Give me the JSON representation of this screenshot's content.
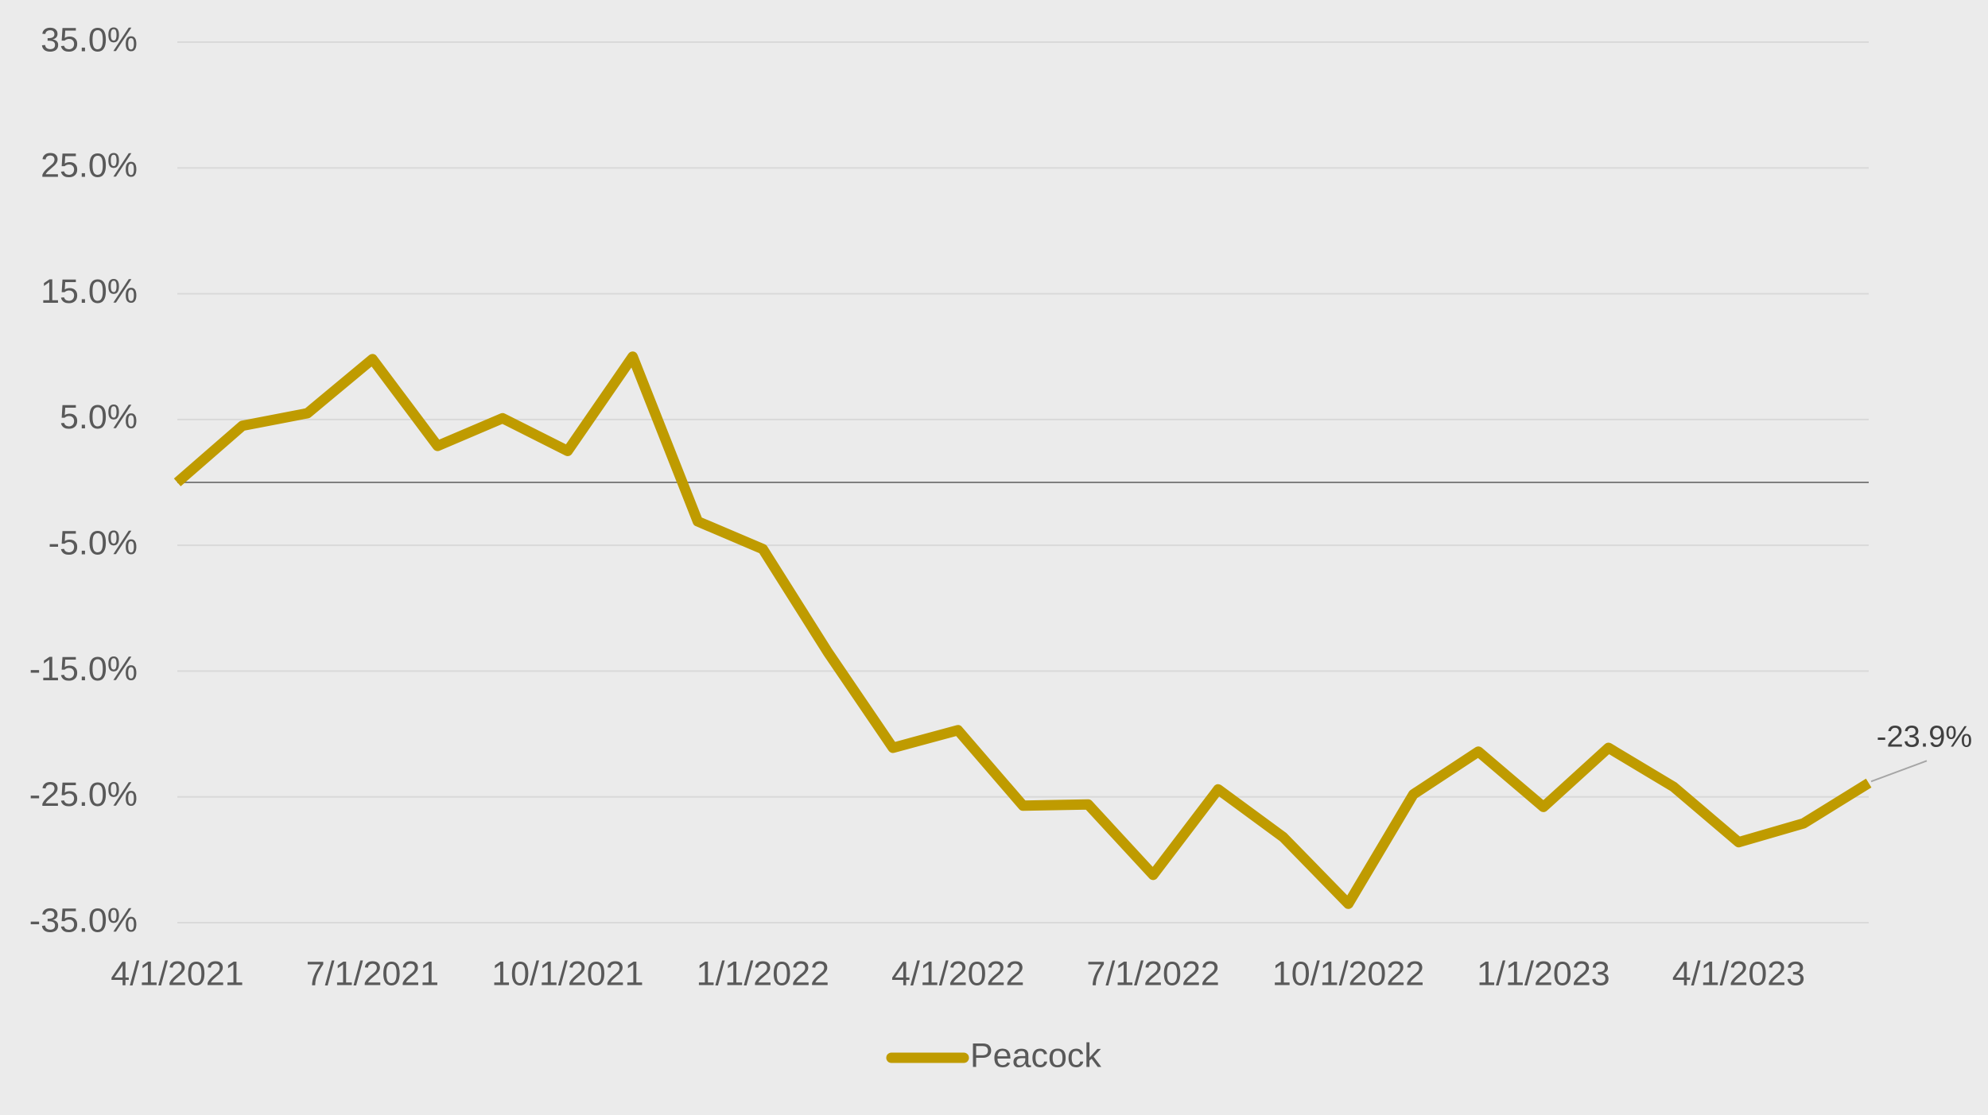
{
  "chart_data": {
    "type": "line",
    "categories": [
      "4/1/2021",
      null,
      null,
      "7/1/2021",
      null,
      null,
      "10/1/2021",
      null,
      null,
      "1/1/2022",
      null,
      null,
      "4/1/2022",
      null,
      null,
      "7/1/2022",
      null,
      null,
      "10/1/2022",
      null,
      null,
      "1/1/2023",
      null,
      null,
      "4/1/2023",
      null,
      null
    ],
    "series": [
      {
        "name": "Peacock",
        "color": "#BF9B00",
        "values": [
          0,
          4.5,
          5.5,
          9.8,
          2.9,
          5.1,
          2.5,
          10.0,
          -3.1,
          -5.3,
          -13.5,
          -21.1,
          -19.7,
          -25.7,
          -25.6,
          -31.2,
          -24.4,
          -28.2,
          -33.5,
          -24.8,
          -21.4,
          -25.8,
          -21.1,
          -24.2,
          -28.6,
          -27.1,
          -23.9
        ],
        "value_labels": [
          null,
          null,
          null,
          null,
          null,
          null,
          null,
          null,
          null,
          null,
          null,
          null,
          null,
          null,
          null,
          null,
          null,
          null,
          null,
          null,
          null,
          null,
          null,
          null,
          null,
          null,
          "-23.9%"
        ]
      }
    ],
    "ylim": [
      -35,
      35
    ],
    "yticks": [
      {
        "value": -35,
        "label": "-35.0%"
      },
      {
        "value": -25,
        "label": "-25.0%"
      },
      {
        "value": -15,
        "label": "-15.0%"
      },
      {
        "value": -5,
        "label": "-5.0%"
      },
      {
        "value": 5,
        "label": "5.0%"
      },
      {
        "value": 15,
        "label": "15.0%"
      },
      {
        "value": 25,
        "label": "25.0%"
      },
      {
        "value": 35,
        "label": "35.0%"
      }
    ],
    "grid": true,
    "legend": "bottom"
  }
}
